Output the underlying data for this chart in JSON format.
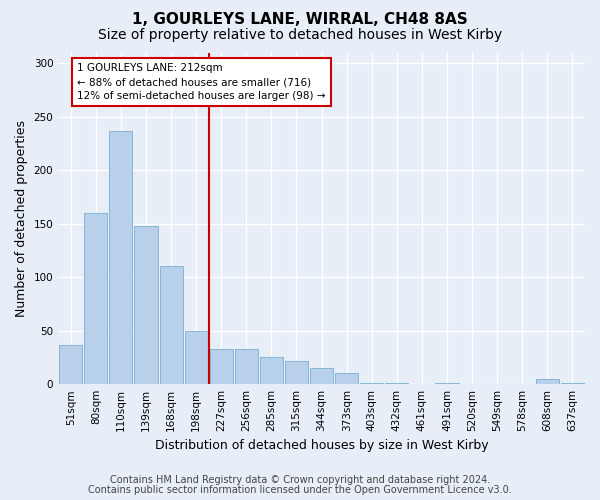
{
  "title": "1, GOURLEYS LANE, WIRRAL, CH48 8AS",
  "subtitle": "Size of property relative to detached houses in West Kirby",
  "xlabel": "Distribution of detached houses by size in West Kirby",
  "ylabel": "Number of detached properties",
  "categories": [
    "51sqm",
    "80sqm",
    "110sqm",
    "139sqm",
    "168sqm",
    "198sqm",
    "227sqm",
    "256sqm",
    "285sqm",
    "315sqm",
    "344sqm",
    "373sqm",
    "403sqm",
    "432sqm",
    "461sqm",
    "491sqm",
    "520sqm",
    "549sqm",
    "578sqm",
    "608sqm",
    "637sqm"
  ],
  "values": [
    37,
    160,
    237,
    148,
    110,
    50,
    33,
    33,
    25,
    22,
    15,
    10,
    1,
    1,
    0,
    1,
    0,
    0,
    0,
    5,
    1
  ],
  "bar_color": "#b8d0ea",
  "bar_edge_color": "#7aafd4",
  "vline_x": 5.5,
  "annotation_line1": "1 GOURLEYS LANE: 212sqm",
  "annotation_line2": "← 88% of detached houses are smaller (716)",
  "annotation_line3": "12% of semi-detached houses are larger (98) →",
  "annotation_box_facecolor": "#ffffff",
  "annotation_box_edgecolor": "#cc0000",
  "vline_color": "#cc0000",
  "ylim": [
    0,
    310
  ],
  "yticks": [
    0,
    50,
    100,
    150,
    200,
    250,
    300
  ],
  "bg_color": "#e8eef8",
  "footnote1": "Contains HM Land Registry data © Crown copyright and database right 2024.",
  "footnote2": "Contains public sector information licensed under the Open Government Licence v3.0.",
  "title_fontsize": 11,
  "subtitle_fontsize": 10,
  "ylabel_fontsize": 9,
  "xlabel_fontsize": 9,
  "tick_fontsize": 7.5,
  "annotation_fontsize": 7.5,
  "footnote_fontsize": 7
}
